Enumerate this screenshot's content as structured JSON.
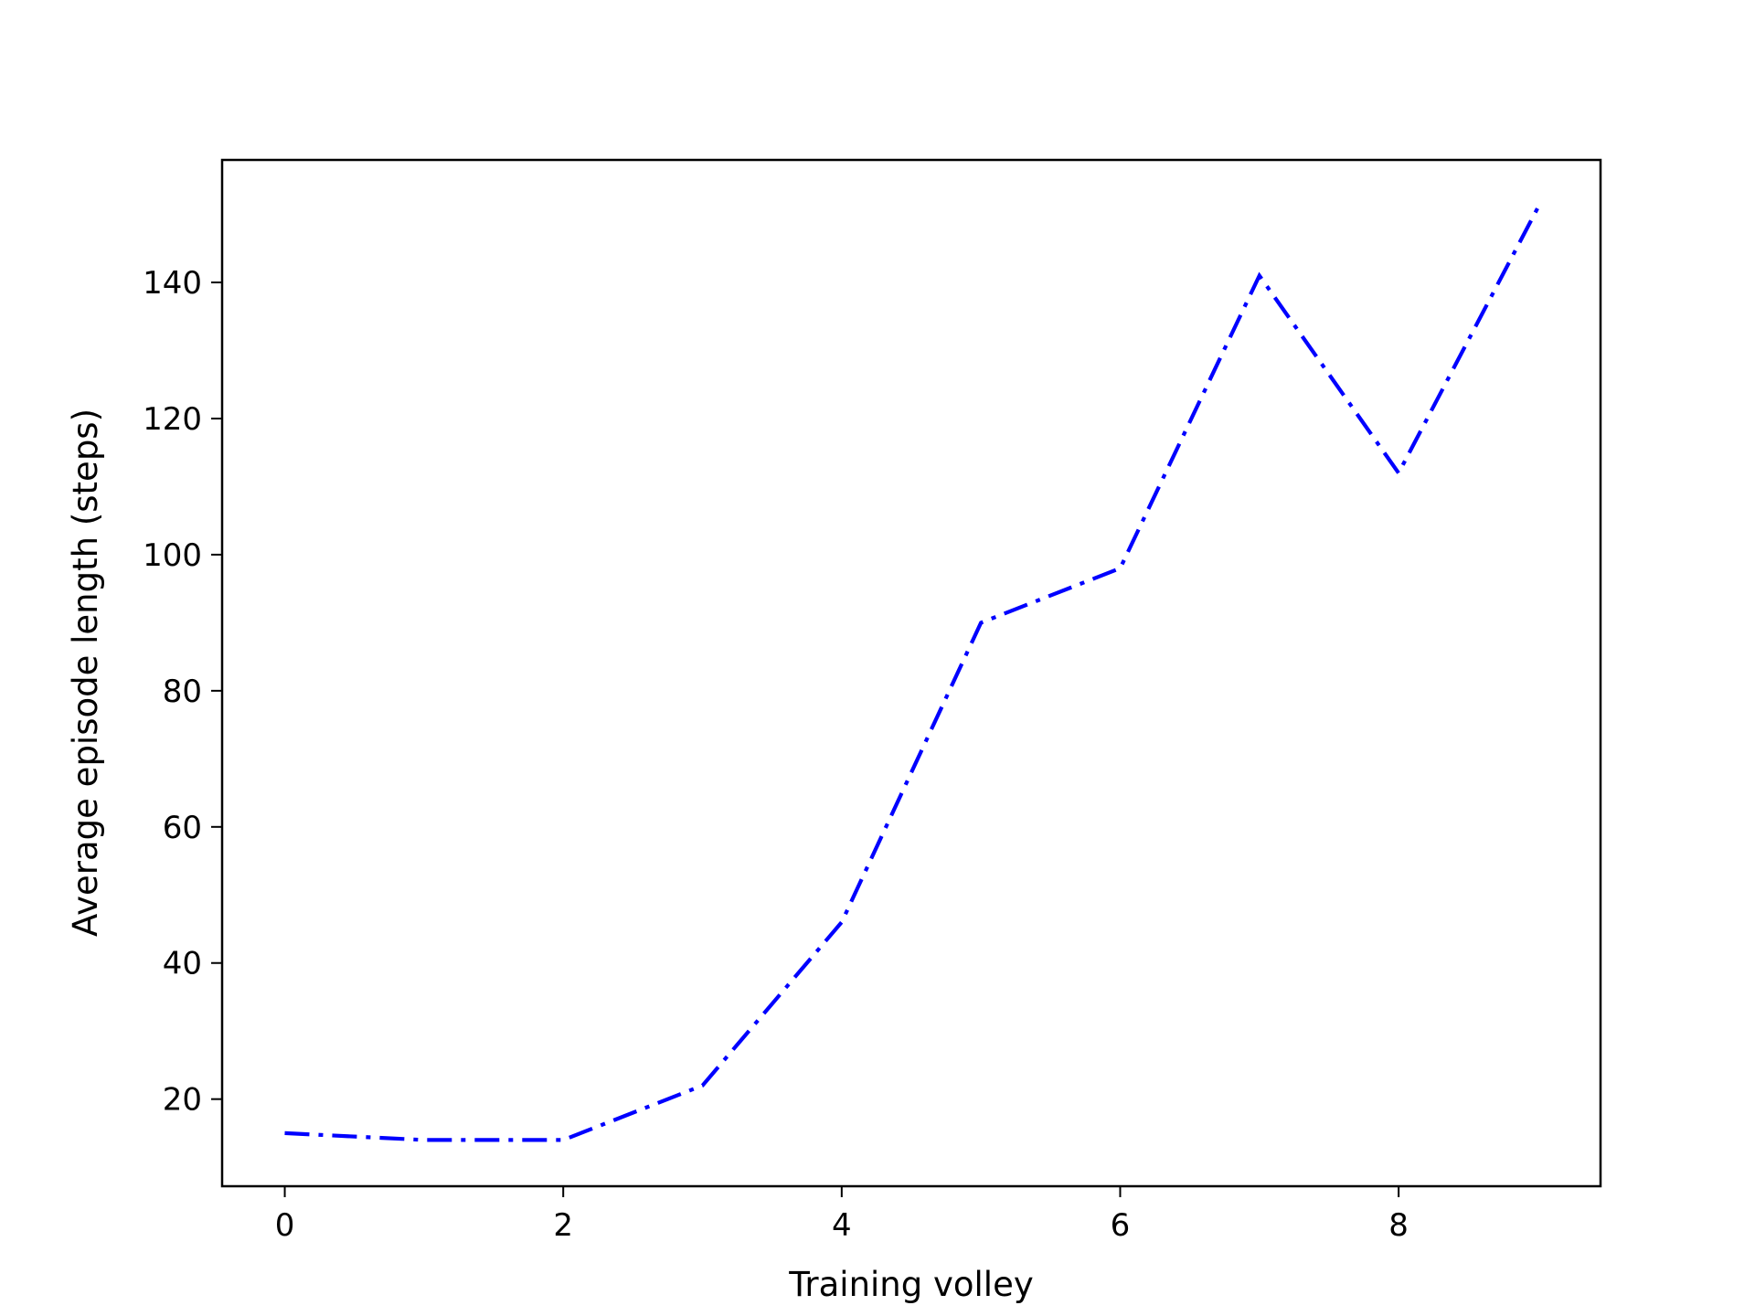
{
  "chart_data": {
    "type": "line",
    "title": "",
    "xlabel": "Training volley",
    "ylabel": "Average episode length (steps)",
    "xlim": [
      -0.45,
      9.45
    ],
    "ylim": [
      7.2,
      158
    ],
    "xticks": [
      0,
      2,
      4,
      6,
      8
    ],
    "yticks": [
      20,
      40,
      60,
      80,
      100,
      120,
      140
    ],
    "xtick_labels": [
      "0",
      "2",
      "4",
      "6",
      "8"
    ],
    "ytick_labels": [
      "20",
      "40",
      "60",
      "80",
      "100",
      "120",
      "140"
    ],
    "grid": false,
    "legend": "none",
    "series": [
      {
        "x": [
          0,
          1,
          2,
          3,
          4,
          5,
          6,
          7,
          8,
          9
        ],
        "values": [
          15,
          14,
          14,
          22,
          46,
          90,
          98,
          141,
          112,
          151
        ],
        "color": "#0000ff",
        "linestyle": "dash-dot"
      }
    ]
  }
}
